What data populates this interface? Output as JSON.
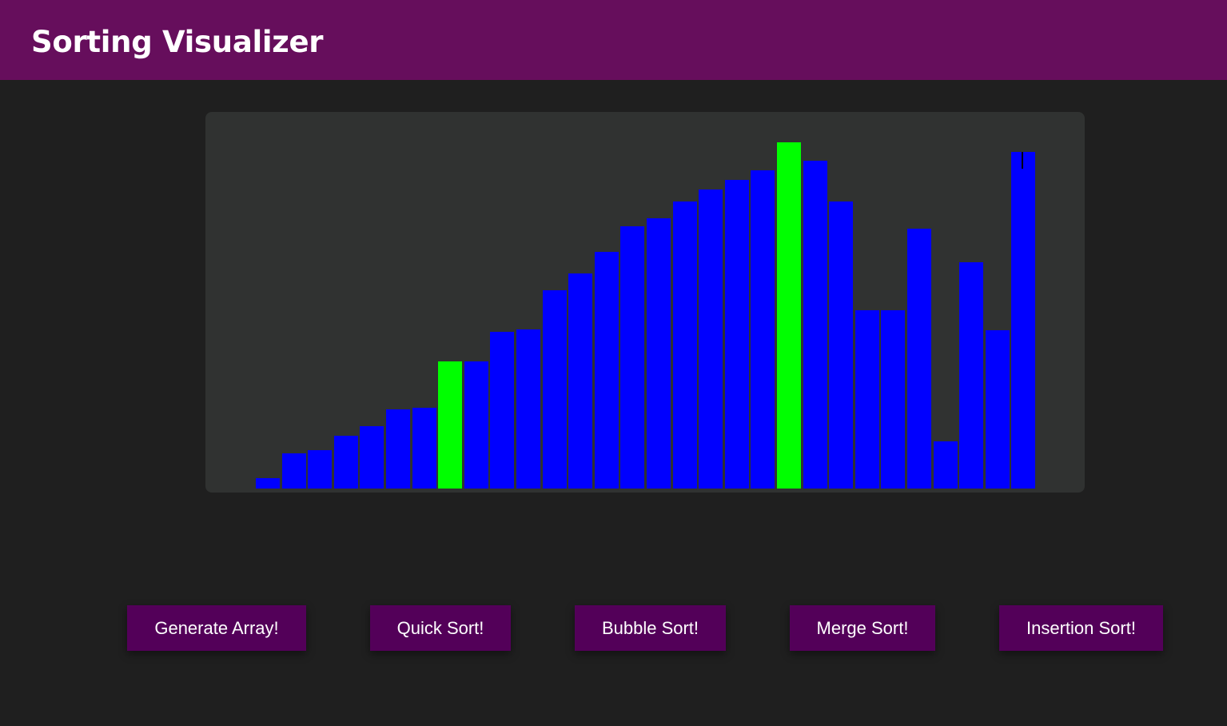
{
  "header": {
    "title": "Sorting Visualizer"
  },
  "colors": {
    "header_bg": "#660e5c",
    "page_bg": "#1f1f1f",
    "panel_bg": "#303231",
    "bar_default": "#0000ff",
    "bar_highlight": "#00ff00",
    "button_bg": "#530059"
  },
  "array": {
    "max_value": 433,
    "values": [
      13,
      44,
      48,
      66,
      78,
      99,
      101,
      159,
      159,
      196,
      199,
      248,
      269,
      296,
      328,
      338,
      359,
      374,
      386,
      398,
      433,
      410,
      359,
      223,
      223,
      325,
      59,
      283,
      198,
      421
    ],
    "highlighted": [
      7,
      20
    ]
  },
  "buttons": {
    "generate": "Generate Array!",
    "quick": "Quick Sort!",
    "bubble": "Bubble Sort!",
    "merge": "Merge Sort!",
    "insertion": "Insertion Sort!"
  }
}
